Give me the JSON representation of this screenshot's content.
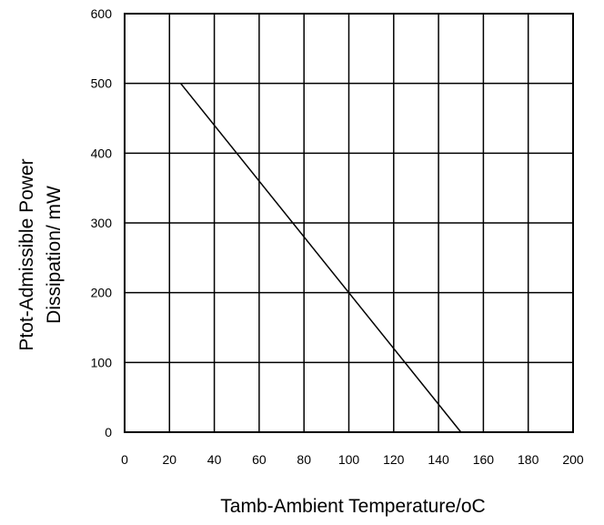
{
  "chart_data": {
    "type": "line",
    "title": "",
    "xlabel": "Tamb-Ambient Temperature/oC",
    "ylabel_line1": "Ptot-Admissible Power",
    "ylabel_line2": "Dissipation/ mW",
    "xlim": [
      0,
      200
    ],
    "ylim": [
      0,
      600
    ],
    "xticks": [
      0,
      20,
      40,
      60,
      80,
      100,
      120,
      140,
      160,
      180,
      200
    ],
    "yticks": [
      0,
      100,
      200,
      300,
      400,
      500,
      600
    ],
    "grid": true,
    "legend": "none",
    "series": [
      {
        "x": [
          25,
          150
        ],
        "y": [
          500,
          0
        ]
      }
    ],
    "colors": {
      "grid": "#000000",
      "line": "#000000"
    }
  }
}
